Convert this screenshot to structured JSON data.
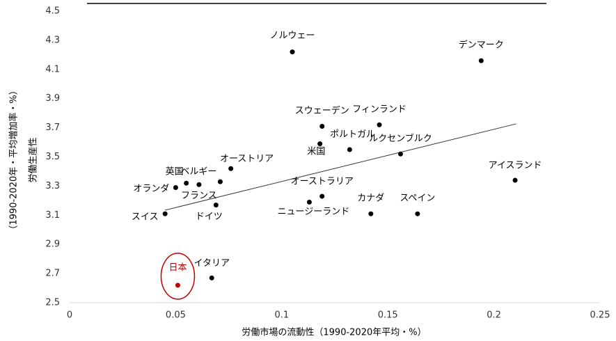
{
  "chart_data": {
    "type": "scatter",
    "x_label": "労働市場の流動性（1990-2020年平均・%）",
    "y_label": [
      "労働生産性",
      "（1990-2020年・平均増加率・%）"
    ],
    "labels": [
      "ノルウェー",
      "デンマーク",
      "スウェーデン",
      "フィンランド",
      "ポルトガル",
      "米国",
      "ルクセンブルク",
      "オーストリア",
      "ベルギー",
      "英国",
      "フランス",
      "オランダ",
      "アイスランド",
      "オーストラリア",
      "ニュージーランド",
      "ドイツ",
      "スイス",
      "カナダ",
      "スペイン",
      "イタリア",
      "日本"
    ],
    "x": [
      0.105,
      0.194,
      0.119,
      0.146,
      0.118,
      0.132,
      0.156,
      0.076,
      0.071,
      0.055,
      0.061,
      0.05,
      0.21,
      0.119,
      0.113,
      0.069,
      0.045,
      0.142,
      0.164,
      0.067,
      0.051
    ],
    "y": [
      4.22,
      4.16,
      3.71,
      3.72,
      3.59,
      3.55,
      3.52,
      3.42,
      3.33,
      3.32,
      3.31,
      3.29,
      3.34,
      3.23,
      3.19,
      3.17,
      3.11,
      3.11,
      3.11,
      2.67,
      2.62
    ],
    "color": "#000000",
    "colors": [
      "#000000",
      "#000000",
      "#000000",
      "#000000",
      "#000000",
      "#000000",
      "#000000",
      "#000000",
      "#000000",
      "#000000",
      "#000000",
      "#000000",
      "#000000",
      "#000000",
      "#000000",
      "#000000",
      "#000000",
      "#000000",
      "#000000",
      "#000000",
      "#c00000"
    ],
    "trendline": {
      "x": [
        0.045,
        0.2105
      ],
      "y": [
        3.135,
        3.727
      ]
    },
    "xlim": [
      0,
      0.25
    ],
    "xticks": [
      0,
      0.05,
      0.1,
      0.15,
      0.2,
      0.25
    ],
    "ylim": [
      2.5,
      4.5
    ],
    "yticks": [
      2.5,
      2.7,
      2.9,
      3.1,
      3.3,
      3.5,
      3.7,
      3.9,
      4.1,
      4.3,
      4.5
    ]
  }
}
